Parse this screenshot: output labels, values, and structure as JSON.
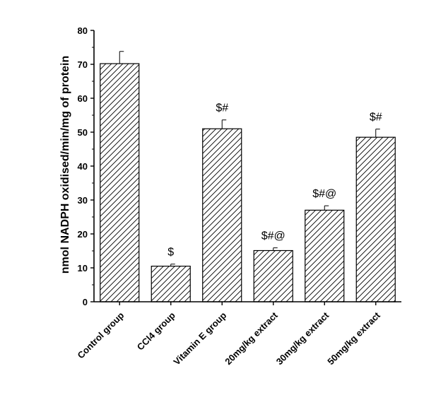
{
  "chart_data": {
    "type": "bar",
    "title": "",
    "xlabel": "",
    "ylabel": "nmol NADPH oxidised/min/mg of protein",
    "ylim": [
      0,
      80
    ],
    "yticks": [
      0,
      10,
      20,
      30,
      40,
      50,
      60,
      70,
      80
    ],
    "categories": [
      "Control group",
      "CCl4 group",
      "Vitamin E group",
      "20mg/kg extract",
      "30mg/kg extract",
      "50mg/kg extract"
    ],
    "values": [
      70.2,
      10.5,
      51.0,
      15.1,
      27.0,
      48.5
    ],
    "errors": [
      3.6,
      0.6,
      2.6,
      0.8,
      1.3,
      2.4
    ],
    "annotations": [
      "",
      "$",
      "$#",
      "$#@",
      "$#@",
      "$#"
    ],
    "bar_pattern": "diagonal-hatch",
    "grid": false,
    "legend": "none"
  }
}
